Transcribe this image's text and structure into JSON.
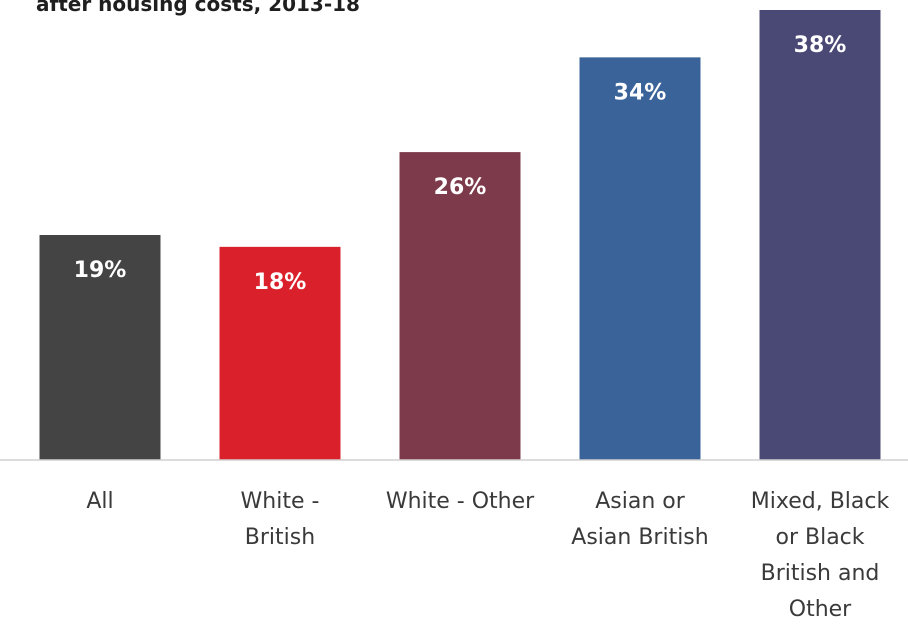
{
  "chart_data": {
    "type": "bar",
    "title": "after housing costs, 2013-18",
    "categories": [
      "All",
      "White - British",
      "White - Other",
      "Asian or Asian British",
      "Mixed, Black or Black British and Other"
    ],
    "category_lines": [
      [
        "All"
      ],
      [
        "White -",
        "British"
      ],
      [
        "White - Other"
      ],
      [
        "Asian or",
        "Asian British"
      ],
      [
        "Mixed, Black",
        "or Black",
        "British and",
        "Other"
      ]
    ],
    "values": [
      19,
      18,
      26,
      34,
      38
    ],
    "value_labels": [
      "19%",
      "18%",
      "26%",
      "34%",
      "38%"
    ],
    "colors": [
      "#444444",
      "#d9202b",
      "#7d3a4a",
      "#3a6399",
      "#4a4975"
    ],
    "unit": "%",
    "xlabel": "",
    "ylabel": "",
    "ylim": [
      0,
      38
    ],
    "grid": false,
    "legend": "none"
  }
}
